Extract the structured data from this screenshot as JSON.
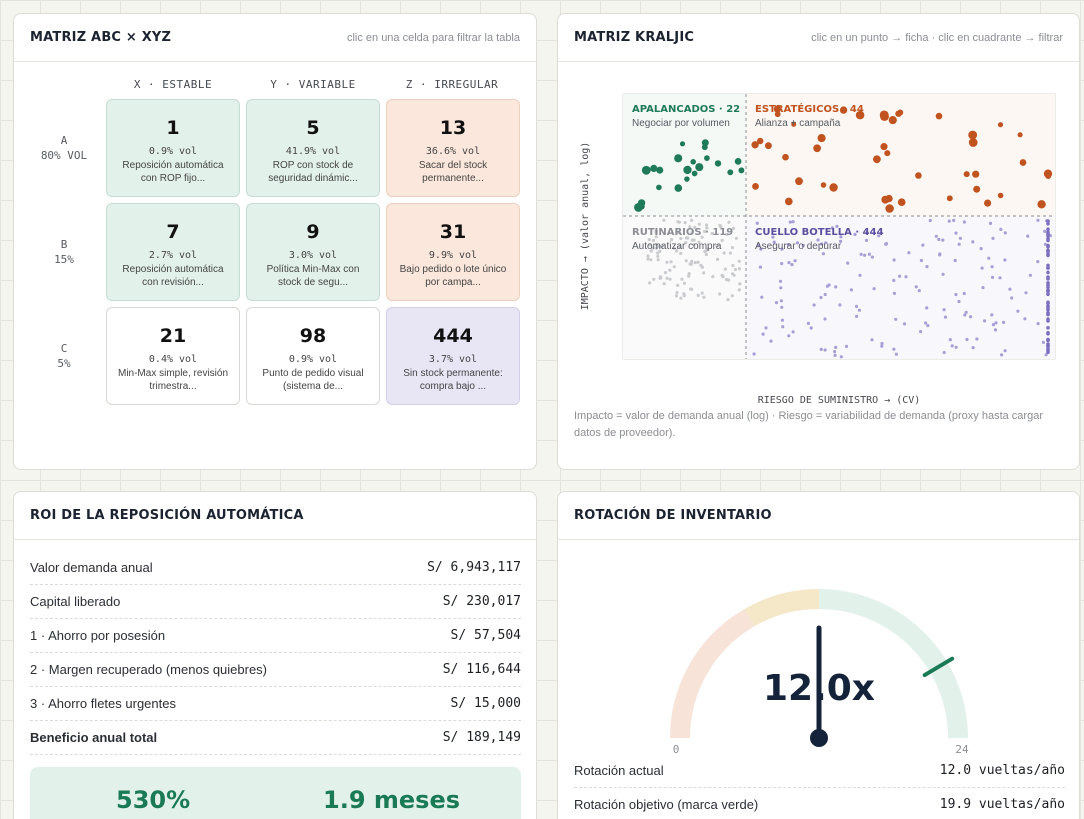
{
  "abc_card": {
    "title": "MATRIZ ABC × XYZ",
    "hint": "clic en una celda para filtrar la tabla",
    "columns": [
      "X · ESTABLE",
      "Y · VARIABLE",
      "Z · IRREGULAR"
    ],
    "rows": [
      {
        "label": "A",
        "sub": "80% VOL"
      },
      {
        "label": "B",
        "sub": "15%"
      },
      {
        "label": "C",
        "sub": "5%"
      }
    ],
    "cells": [
      [
        {
          "count": "1",
          "vol": "0.9% vol",
          "desc1": "Reposición automática",
          "desc2": "con ROP fijo...",
          "tone": "green"
        },
        {
          "count": "5",
          "vol": "41.9% vol",
          "desc1": "ROP con stock de",
          "desc2": "seguridad dinámic...",
          "tone": "green"
        },
        {
          "count": "13",
          "vol": "36.6% vol",
          "desc1": "Sacar del stock",
          "desc2": "permanente...",
          "tone": "orange"
        }
      ],
      [
        {
          "count": "7",
          "vol": "2.7% vol",
          "desc1": "Reposición automática",
          "desc2": "con revisión...",
          "tone": "green"
        },
        {
          "count": "9",
          "vol": "3.0% vol",
          "desc1": "Política Min-Max con",
          "desc2": "stock de segu...",
          "tone": "green"
        },
        {
          "count": "31",
          "vol": "9.9% vol",
          "desc1": "Bajo pedido o lote único",
          "desc2": "por campa...",
          "tone": "orange"
        }
      ],
      [
        {
          "count": "21",
          "vol": "0.4% vol",
          "desc1": "Min-Max simple, revisión",
          "desc2": "trimestra...",
          "tone": "white"
        },
        {
          "count": "98",
          "vol": "0.9% vol",
          "desc1": "Punto de pedido visual",
          "desc2": "(sistema de...",
          "tone": "white"
        },
        {
          "count": "444",
          "vol": "3.7% vol",
          "desc1": "Sin stock permanente:",
          "desc2": "compra bajo ...",
          "tone": "purple"
        }
      ]
    ]
  },
  "kraljic_card": {
    "title": "MATRIZ KRALJIC",
    "hint": "clic en un punto → ficha · clic en cuadrante → filtrar",
    "y_axis_label": "IMPACTO → (valor anual, log)",
    "x_axis_label": "RIESGO DE SUMINISTRO → (CV)",
    "caption": "Impacto = valor de demanda anual (log) · Riesgo = variabilidad de demanda (proxy hasta cargar datos de proveedor).",
    "quadrants": [
      {
        "name": "APALANCADOS · 22",
        "desc": "Negociar por volumen",
        "color": "#1f7a5a"
      },
      {
        "name": "ESTRATÉGICOS · 44",
        "desc": "Alianza + campaña",
        "color": "#c0531f"
      },
      {
        "name": "RUTINARIOS · 119",
        "desc": "Automatizar compra",
        "color": "#8a8e95"
      },
      {
        "name": "CUELLO BOTELLA · 444",
        "desc": "Asegurar o depurar",
        "color": "#5b4fa0"
      }
    ]
  },
  "roi_card": {
    "title": "ROI DE LA REPOSICIÓN AUTOMÁTICA",
    "rows": [
      {
        "label": "Valor demanda anual",
        "value": "S/ 6,943,117"
      },
      {
        "label": "Capital liberado",
        "value": "S/ 230,017"
      },
      {
        "label": "1 · Ahorro por posesión",
        "value": "S/ 57,504"
      },
      {
        "label": "2 · Margen recuperado (menos quiebres)",
        "value": "S/ 116,644"
      },
      {
        "label": "3 · Ahorro fletes urgentes",
        "value": "S/ 15,000"
      },
      {
        "label": "Beneficio anual total",
        "value": "S/ 189,149"
      }
    ],
    "roi_percent": "530%",
    "payback": "1.9 meses"
  },
  "rotation_card": {
    "title": "ROTACIÓN DE INVENTARIO",
    "gauge_value": "12.0x",
    "gauge_min": "0",
    "gauge_max": "24",
    "current_fraction": 0.5,
    "target_fraction": 0.829,
    "colors": {
      "low": "#f7e3d8",
      "mid": "#f5e8c8",
      "high": "#e3f1eb",
      "needle": "#14233a",
      "target": "#1a7a55"
    },
    "rows": [
      {
        "label": "Rotación actual",
        "value": "12.0 vueltas/año"
      },
      {
        "label": "Rotación objetivo (marca verde)",
        "value": "19.9 vueltas/año"
      }
    ]
  }
}
